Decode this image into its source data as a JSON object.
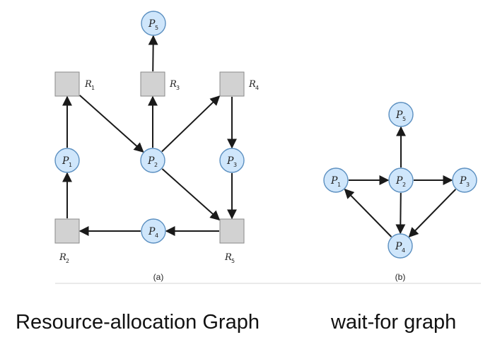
{
  "diagram_a": {
    "caption": "(a)",
    "processes": [
      {
        "id": "P5",
        "name": "P",
        "sub": "5"
      },
      {
        "id": "P1",
        "name": "P",
        "sub": "1"
      },
      {
        "id": "P2",
        "name": "P",
        "sub": "2"
      },
      {
        "id": "P3",
        "name": "P",
        "sub": "3"
      },
      {
        "id": "P4",
        "name": "P",
        "sub": "4"
      }
    ],
    "resources": [
      {
        "id": "R1",
        "name": "R",
        "sub": "1"
      },
      {
        "id": "R3",
        "name": "R",
        "sub": "3"
      },
      {
        "id": "R4",
        "name": "R",
        "sub": "4"
      },
      {
        "id": "R2",
        "name": "R",
        "sub": "2"
      },
      {
        "id": "R5",
        "name": "R",
        "sub": "5"
      }
    ],
    "edges": [
      {
        "from": "R3",
        "to": "P5"
      },
      {
        "from": "P1",
        "to": "R1"
      },
      {
        "from": "R1",
        "to": "P2"
      },
      {
        "from": "P2",
        "to": "R3"
      },
      {
        "from": "P2",
        "to": "R4"
      },
      {
        "from": "R4",
        "to": "P3"
      },
      {
        "from": "P2",
        "to": "R5"
      },
      {
        "from": "P3",
        "to": "R5"
      },
      {
        "from": "R2",
        "to": "P1"
      },
      {
        "from": "R5",
        "to": "P4"
      },
      {
        "from": "P4",
        "to": "R2"
      }
    ]
  },
  "diagram_b": {
    "caption": "(b)",
    "processes": [
      {
        "id": "P5",
        "name": "P",
        "sub": "5"
      },
      {
        "id": "P1",
        "name": "P",
        "sub": "1"
      },
      {
        "id": "P2",
        "name": "P",
        "sub": "2"
      },
      {
        "id": "P3",
        "name": "P",
        "sub": "3"
      },
      {
        "id": "P4",
        "name": "P",
        "sub": "4"
      }
    ],
    "edges": [
      {
        "from": "P2",
        "to": "P5"
      },
      {
        "from": "P1",
        "to": "P2"
      },
      {
        "from": "P2",
        "to": "P3"
      },
      {
        "from": "P2",
        "to": "P4"
      },
      {
        "from": "P3",
        "to": "P4"
      },
      {
        "from": "P4",
        "to": "P1"
      }
    ]
  },
  "captions": {
    "left": "Resource-allocation Graph",
    "right": "wait-for graph"
  }
}
